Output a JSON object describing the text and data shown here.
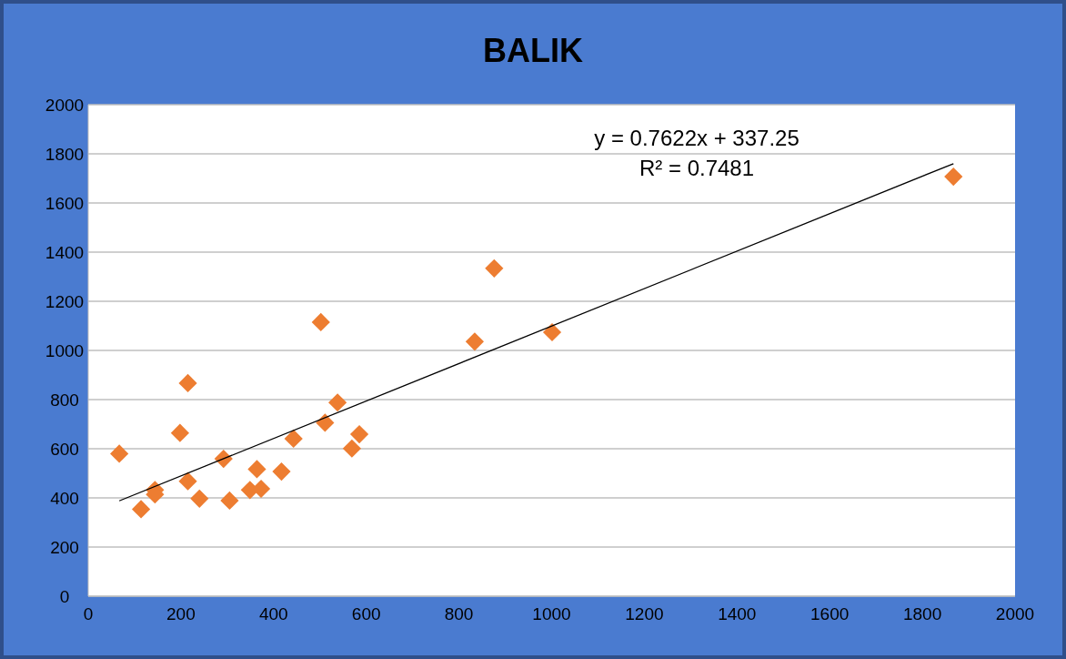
{
  "chart_data": {
    "type": "scatter",
    "title": "BALIK",
    "grid": "y",
    "xlim": [
      0,
      2000
    ],
    "xticks": [
      0,
      200,
      400,
      600,
      800,
      1000,
      1200,
      1400,
      1600,
      1800,
      2000
    ],
    "ylim": [
      0,
      2000
    ],
    "yticks": [
      0,
      200,
      400,
      600,
      800,
      1000,
      1200,
      1400,
      1600,
      1800,
      2000
    ],
    "annotations": [
      "y = 0.7622x + 337.25",
      "R² = 0.7481"
    ],
    "series": [
      {
        "color": "#ed7d31",
        "marker": "diamond",
        "x": [
          67,
          114,
          144,
          144,
          198,
          215,
          215,
          240,
          292,
          305,
          349,
          364,
          373,
          417,
          443,
          502,
          511,
          538,
          569,
          585,
          834,
          876,
          1001,
          1867
        ],
        "values": [
          580,
          354,
          432,
          414,
          664,
          867,
          468,
          397,
          559,
          389,
          432,
          517,
          437,
          507,
          641,
          1115,
          706,
          788,
          601,
          659,
          1036,
          1334,
          1074,
          1707
        ]
      },
      {
        "type": "line",
        "color": "#000000",
        "marker": "none",
        "x": [
          67,
          1867
        ],
        "values": [
          388,
          1760
        ]
      }
    ]
  }
}
